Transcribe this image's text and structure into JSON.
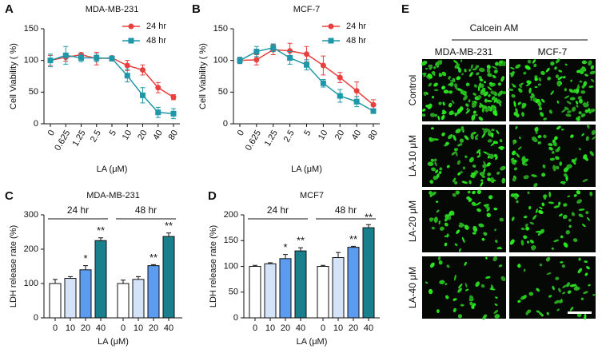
{
  "panels": [
    "A",
    "B",
    "C",
    "D",
    "E"
  ],
  "chart_data": [
    {
      "type": "line",
      "title": "MDA-MB-231",
      "x_label": "LA (μM)",
      "y_label": "Cell Viability ( %)",
      "categories": [
        "0",
        "0.625",
        "1.25",
        "2.5",
        "5",
        "10",
        "20",
        "40",
        "80"
      ],
      "ylim": [
        0,
        150
      ],
      "yticks": [
        0,
        50,
        100,
        150
      ],
      "legend": "upper right",
      "series": [
        {
          "name": "24 hr",
          "color": "#e8403f",
          "marker": "circle",
          "values": [
            100,
            105,
            109,
            103,
            104,
            92,
            85,
            57,
            42
          ],
          "errors": [
            8,
            6,
            3,
            10,
            3,
            8,
            8,
            8,
            4
          ]
        },
        {
          "name": "48 hr",
          "color": "#1f97a8",
          "marker": "square",
          "values": [
            100,
            108,
            104,
            104,
            103,
            76,
            45,
            18,
            16
          ],
          "errors": [
            10,
            14,
            6,
            6,
            4,
            10,
            12,
            8,
            8
          ]
        }
      ]
    },
    {
      "type": "line",
      "title": "MCF-7",
      "x_label": "LA (μM)",
      "y_label": "Cell Viability ( %)",
      "categories": [
        "0",
        "0.625",
        "1.25",
        "2.5",
        "5",
        "10",
        "20",
        "40",
        "80"
      ],
      "ylim": [
        0,
        150
      ],
      "yticks": [
        0,
        50,
        100,
        150
      ],
      "legend": "upper right",
      "series": [
        {
          "name": "24 hr",
          "color": "#e8403f",
          "marker": "circle",
          "values": [
            100,
            101,
            117,
            115,
            110,
            92,
            73,
            52,
            30
          ],
          "errors": [
            5,
            8,
            8,
            12,
            12,
            15,
            8,
            14,
            8
          ]
        },
        {
          "name": "48 hr",
          "color": "#1f97a8",
          "marker": "square",
          "values": [
            100,
            114,
            120,
            104,
            93,
            64,
            44,
            35,
            20
          ],
          "errors": [
            5,
            8,
            6,
            10,
            8,
            6,
            10,
            8,
            3
          ]
        }
      ]
    },
    {
      "type": "bar",
      "title": "MDA-MB-231",
      "x_label": "LA (μM)",
      "y_label": "LDH release rate (%)",
      "categories": [
        "0",
        "10",
        "20",
        "40",
        "0",
        "10",
        "20",
        "40"
      ],
      "groups": [
        "24 hr",
        "48 hr"
      ],
      "ylim": [
        0,
        300
      ],
      "yticks": [
        0,
        100,
        200,
        300
      ],
      "values": [
        100,
        115,
        140,
        225,
        100,
        112,
        152,
        237
      ],
      "errors": [
        12,
        5,
        12,
        8,
        10,
        8,
        3,
        10
      ],
      "colors": [
        "#ffffff",
        "#d4e3f7",
        "#5b9cf0",
        "#1a7f8c",
        "#ffffff",
        "#d4e3f7",
        "#5b9cf0",
        "#1a7f8c"
      ],
      "significance": [
        null,
        null,
        "*",
        "**",
        null,
        null,
        "**",
        "**"
      ]
    },
    {
      "type": "bar",
      "title": "MCF7",
      "x_label": "LA (μM)",
      "y_label": "LDH release rate (%)",
      "categories": [
        "0",
        "10",
        "20",
        "40",
        "0",
        "10",
        "20",
        "40"
      ],
      "groups": [
        "24 hr",
        "48 hr"
      ],
      "ylim": [
        0,
        200
      ],
      "yticks": [
        0,
        50,
        100,
        150,
        200
      ],
      "values": [
        100,
        105,
        115,
        130,
        100,
        117,
        137,
        175
      ],
      "errors": [
        2,
        2,
        8,
        6,
        2,
        10,
        2,
        6
      ],
      "colors": [
        "#ffffff",
        "#d4e3f7",
        "#5b9cf0",
        "#1a7f8c",
        "#ffffff",
        "#d4e3f7",
        "#5b9cf0",
        "#1a7f8c"
      ],
      "significance": [
        null,
        null,
        "*",
        "**",
        null,
        null,
        "**",
        "**"
      ]
    }
  ],
  "micrographs": {
    "title": "Calcein AM",
    "columns": [
      "MDA-MB-231",
      "MCF-7"
    ],
    "rows": [
      "Control",
      "LA-10 μM",
      "LA-20 μM",
      "LA-40 μM"
    ]
  }
}
